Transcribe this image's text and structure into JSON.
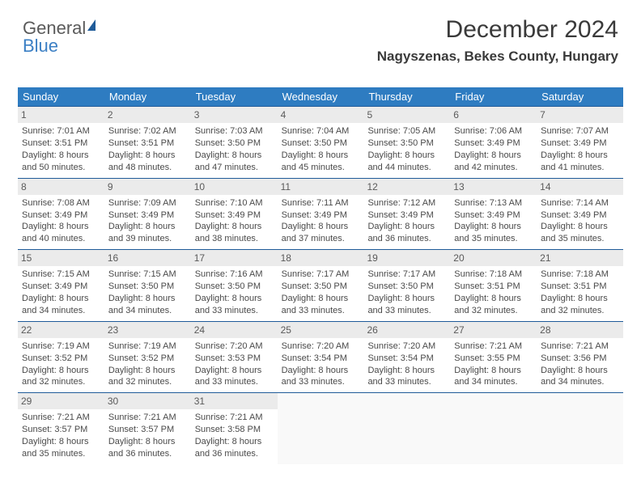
{
  "logo": {
    "part1": "General",
    "part2": "Blue"
  },
  "month_title": "December 2024",
  "location": "Nagyszenas, Bekes County, Hungary",
  "day_names": [
    "Sunday",
    "Monday",
    "Tuesday",
    "Wednesday",
    "Thursday",
    "Friday",
    "Saturday"
  ],
  "colors": {
    "header_bg": "#2e7cc1",
    "header_text": "#ffffff",
    "border": "#1f5b99",
    "daynum_bg": "#ebebeb",
    "text": "#4a4a4a"
  },
  "weeks": [
    [
      {
        "day": "1",
        "sunrise": "Sunrise: 7:01 AM",
        "sunset": "Sunset: 3:51 PM",
        "dl1": "Daylight: 8 hours",
        "dl2": "and 50 minutes."
      },
      {
        "day": "2",
        "sunrise": "Sunrise: 7:02 AM",
        "sunset": "Sunset: 3:51 PM",
        "dl1": "Daylight: 8 hours",
        "dl2": "and 48 minutes."
      },
      {
        "day": "3",
        "sunrise": "Sunrise: 7:03 AM",
        "sunset": "Sunset: 3:50 PM",
        "dl1": "Daylight: 8 hours",
        "dl2": "and 47 minutes."
      },
      {
        "day": "4",
        "sunrise": "Sunrise: 7:04 AM",
        "sunset": "Sunset: 3:50 PM",
        "dl1": "Daylight: 8 hours",
        "dl2": "and 45 minutes."
      },
      {
        "day": "5",
        "sunrise": "Sunrise: 7:05 AM",
        "sunset": "Sunset: 3:50 PM",
        "dl1": "Daylight: 8 hours",
        "dl2": "and 44 minutes."
      },
      {
        "day": "6",
        "sunrise": "Sunrise: 7:06 AM",
        "sunset": "Sunset: 3:49 PM",
        "dl1": "Daylight: 8 hours",
        "dl2": "and 42 minutes."
      },
      {
        "day": "7",
        "sunrise": "Sunrise: 7:07 AM",
        "sunset": "Sunset: 3:49 PM",
        "dl1": "Daylight: 8 hours",
        "dl2": "and 41 minutes."
      }
    ],
    [
      {
        "day": "8",
        "sunrise": "Sunrise: 7:08 AM",
        "sunset": "Sunset: 3:49 PM",
        "dl1": "Daylight: 8 hours",
        "dl2": "and 40 minutes."
      },
      {
        "day": "9",
        "sunrise": "Sunrise: 7:09 AM",
        "sunset": "Sunset: 3:49 PM",
        "dl1": "Daylight: 8 hours",
        "dl2": "and 39 minutes."
      },
      {
        "day": "10",
        "sunrise": "Sunrise: 7:10 AM",
        "sunset": "Sunset: 3:49 PM",
        "dl1": "Daylight: 8 hours",
        "dl2": "and 38 minutes."
      },
      {
        "day": "11",
        "sunrise": "Sunrise: 7:11 AM",
        "sunset": "Sunset: 3:49 PM",
        "dl1": "Daylight: 8 hours",
        "dl2": "and 37 minutes."
      },
      {
        "day": "12",
        "sunrise": "Sunrise: 7:12 AM",
        "sunset": "Sunset: 3:49 PM",
        "dl1": "Daylight: 8 hours",
        "dl2": "and 36 minutes."
      },
      {
        "day": "13",
        "sunrise": "Sunrise: 7:13 AM",
        "sunset": "Sunset: 3:49 PM",
        "dl1": "Daylight: 8 hours",
        "dl2": "and 35 minutes."
      },
      {
        "day": "14",
        "sunrise": "Sunrise: 7:14 AM",
        "sunset": "Sunset: 3:49 PM",
        "dl1": "Daylight: 8 hours",
        "dl2": "and 35 minutes."
      }
    ],
    [
      {
        "day": "15",
        "sunrise": "Sunrise: 7:15 AM",
        "sunset": "Sunset: 3:49 PM",
        "dl1": "Daylight: 8 hours",
        "dl2": "and 34 minutes."
      },
      {
        "day": "16",
        "sunrise": "Sunrise: 7:15 AM",
        "sunset": "Sunset: 3:50 PM",
        "dl1": "Daylight: 8 hours",
        "dl2": "and 34 minutes."
      },
      {
        "day": "17",
        "sunrise": "Sunrise: 7:16 AM",
        "sunset": "Sunset: 3:50 PM",
        "dl1": "Daylight: 8 hours",
        "dl2": "and 33 minutes."
      },
      {
        "day": "18",
        "sunrise": "Sunrise: 7:17 AM",
        "sunset": "Sunset: 3:50 PM",
        "dl1": "Daylight: 8 hours",
        "dl2": "and 33 minutes."
      },
      {
        "day": "19",
        "sunrise": "Sunrise: 7:17 AM",
        "sunset": "Sunset: 3:50 PM",
        "dl1": "Daylight: 8 hours",
        "dl2": "and 33 minutes."
      },
      {
        "day": "20",
        "sunrise": "Sunrise: 7:18 AM",
        "sunset": "Sunset: 3:51 PM",
        "dl1": "Daylight: 8 hours",
        "dl2": "and 32 minutes."
      },
      {
        "day": "21",
        "sunrise": "Sunrise: 7:18 AM",
        "sunset": "Sunset: 3:51 PM",
        "dl1": "Daylight: 8 hours",
        "dl2": "and 32 minutes."
      }
    ],
    [
      {
        "day": "22",
        "sunrise": "Sunrise: 7:19 AM",
        "sunset": "Sunset: 3:52 PM",
        "dl1": "Daylight: 8 hours",
        "dl2": "and 32 minutes."
      },
      {
        "day": "23",
        "sunrise": "Sunrise: 7:19 AM",
        "sunset": "Sunset: 3:52 PM",
        "dl1": "Daylight: 8 hours",
        "dl2": "and 32 minutes."
      },
      {
        "day": "24",
        "sunrise": "Sunrise: 7:20 AM",
        "sunset": "Sunset: 3:53 PM",
        "dl1": "Daylight: 8 hours",
        "dl2": "and 33 minutes."
      },
      {
        "day": "25",
        "sunrise": "Sunrise: 7:20 AM",
        "sunset": "Sunset: 3:54 PM",
        "dl1": "Daylight: 8 hours",
        "dl2": "and 33 minutes."
      },
      {
        "day": "26",
        "sunrise": "Sunrise: 7:20 AM",
        "sunset": "Sunset: 3:54 PM",
        "dl1": "Daylight: 8 hours",
        "dl2": "and 33 minutes."
      },
      {
        "day": "27",
        "sunrise": "Sunrise: 7:21 AM",
        "sunset": "Sunset: 3:55 PM",
        "dl1": "Daylight: 8 hours",
        "dl2": "and 34 minutes."
      },
      {
        "day": "28",
        "sunrise": "Sunrise: 7:21 AM",
        "sunset": "Sunset: 3:56 PM",
        "dl1": "Daylight: 8 hours",
        "dl2": "and 34 minutes."
      }
    ],
    [
      {
        "day": "29",
        "sunrise": "Sunrise: 7:21 AM",
        "sunset": "Sunset: 3:57 PM",
        "dl1": "Daylight: 8 hours",
        "dl2": "and 35 minutes."
      },
      {
        "day": "30",
        "sunrise": "Sunrise: 7:21 AM",
        "sunset": "Sunset: 3:57 PM",
        "dl1": "Daylight: 8 hours",
        "dl2": "and 36 minutes."
      },
      {
        "day": "31",
        "sunrise": "Sunrise: 7:21 AM",
        "sunset": "Sunset: 3:58 PM",
        "dl1": "Daylight: 8 hours",
        "dl2": "and 36 minutes."
      },
      null,
      null,
      null,
      null
    ]
  ]
}
